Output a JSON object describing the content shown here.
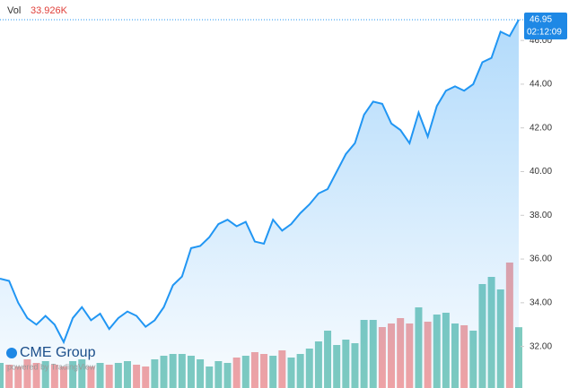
{
  "chart_data": {
    "type": "line",
    "series": [
      {
        "color": "#2196f3",
        "values": [
          35.1,
          35.0,
          34.0,
          33.3,
          33.0,
          33.4,
          33.0,
          32.2,
          33.3,
          33.8,
          33.2,
          33.5,
          32.8,
          33.3,
          33.6,
          33.4,
          32.9,
          33.2,
          33.8,
          34.8,
          35.2,
          36.5,
          36.6,
          37.0,
          37.6,
          37.8,
          37.5,
          37.7,
          36.8,
          36.7,
          37.8,
          37.3,
          37.6,
          38.1,
          38.5,
          39.0,
          39.2,
          40.0,
          40.8,
          41.3,
          42.6,
          43.2,
          43.1,
          42.2,
          41.9,
          41.3,
          42.7,
          41.6,
          43.0,
          43.7,
          43.9,
          43.7,
          44.0,
          45.0,
          45.2,
          46.4,
          46.2,
          46.95
        ]
      },
      {
        "name": "Vol",
        "axis": "volume",
        "up_color": "#7fcbbf",
        "down_color": "#f4a3a3",
        "values": [
          14,
          13,
          12,
          16,
          14,
          15,
          13,
          12,
          15,
          16,
          12,
          14,
          13,
          14,
          15,
          13,
          12,
          16,
          18,
          19,
          19,
          18,
          16,
          12,
          15,
          14,
          17,
          18,
          20,
          19,
          18,
          21,
          17,
          19,
          22,
          26,
          32,
          24,
          27,
          25,
          38,
          38,
          34,
          36,
          39,
          36,
          45,
          37,
          41,
          42,
          36,
          35,
          32,
          58,
          62,
          55,
          70,
          33.926
        ],
        "value_labels": [
          null,
          null,
          null,
          null,
          null,
          null,
          null,
          null,
          null,
          null,
          null,
          null,
          null,
          null,
          null,
          null,
          null,
          null,
          null,
          null,
          null,
          null,
          null,
          null,
          null,
          null,
          null,
          null,
          null,
          null,
          null,
          null,
          null,
          null,
          null,
          null,
          null,
          null,
          null,
          null,
          null,
          null,
          null,
          null,
          null,
          null,
          null,
          null,
          null,
          null,
          null,
          null,
          null,
          null,
          null,
          null,
          null,
          "33.926K"
        ]
      }
    ],
    "ylim": [
      30.1,
      47.85
    ],
    "yticks": [
      {
        "value": 32,
        "label": "32.00"
      },
      {
        "value": 34,
        "label": "34.00"
      },
      {
        "value": 36,
        "label": "36.00"
      },
      {
        "value": 38,
        "label": "38.00"
      },
      {
        "value": 40,
        "label": "40.00"
      },
      {
        "value": 42,
        "label": "42.00"
      },
      {
        "value": 44,
        "label": "44.00"
      },
      {
        "value": 46,
        "label": "46.00"
      }
    ],
    "volume_lim": [
      0,
      90
    ],
    "countdown": "02:12:09",
    "brand": "CME Group",
    "powered_by": "powered by TradingView"
  }
}
